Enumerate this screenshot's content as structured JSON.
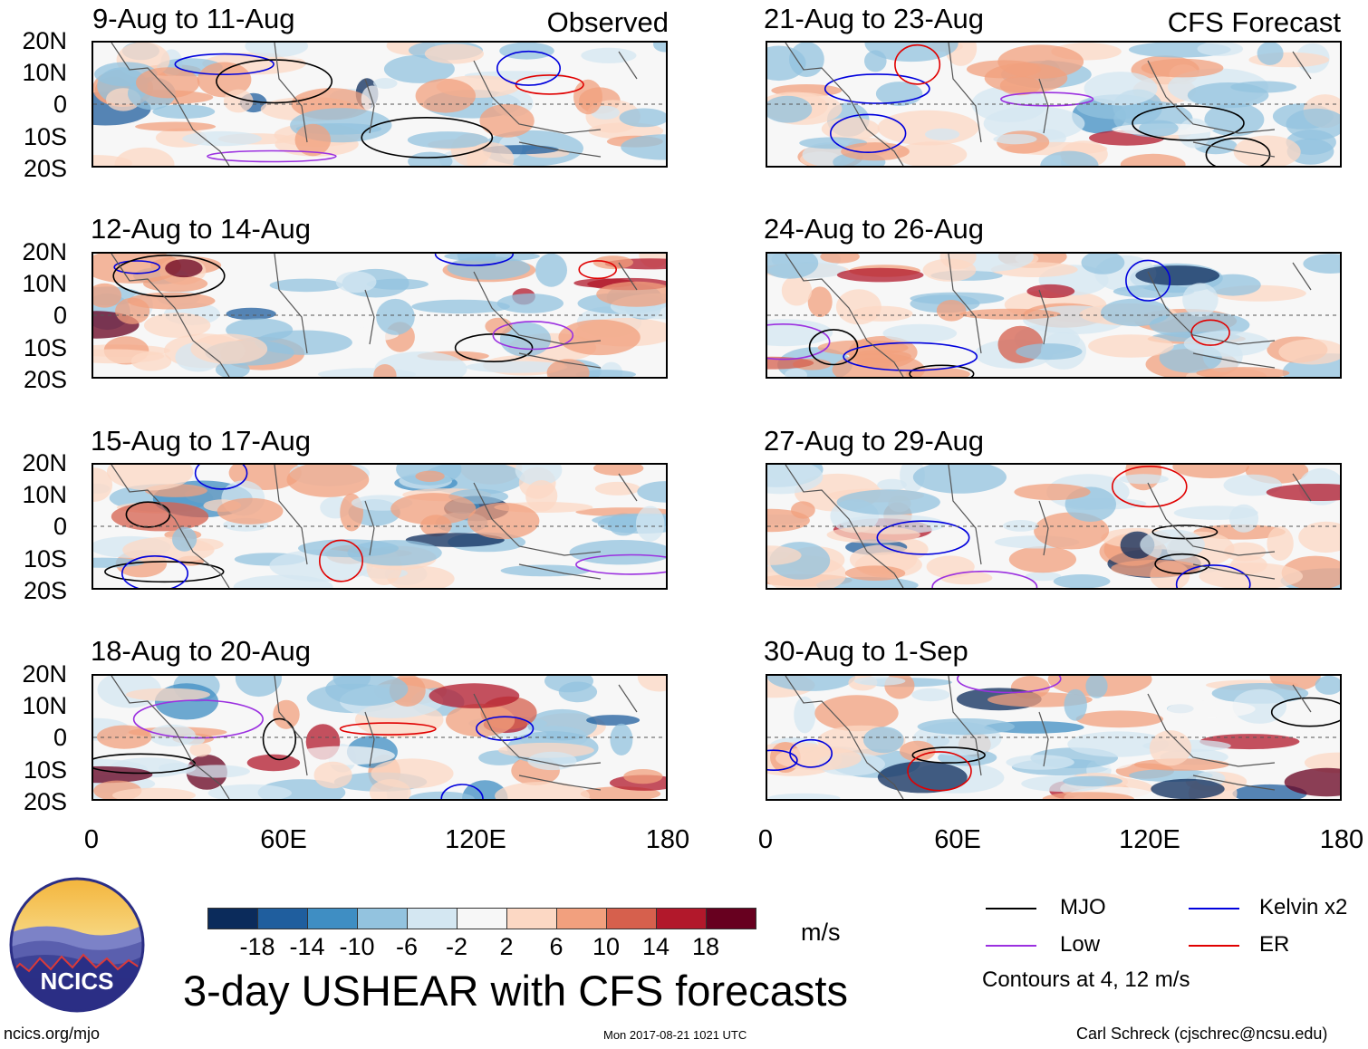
{
  "header": {
    "observed_label": "Observed",
    "forecast_label": "CFS Forecast"
  },
  "panels_left": [
    {
      "title": "9-Aug to 11-Aug"
    },
    {
      "title": "12-Aug to 14-Aug"
    },
    {
      "title": "15-Aug to 17-Aug"
    },
    {
      "title": "18-Aug to 20-Aug"
    }
  ],
  "panels_right": [
    {
      "title": "21-Aug to 23-Aug"
    },
    {
      "title": "24-Aug to 26-Aug"
    },
    {
      "title": "27-Aug to 29-Aug"
    },
    {
      "title": "30-Aug to 1-Sep"
    }
  ],
  "axes": {
    "lat_labels": [
      "20N",
      "10N",
      "0",
      "10S",
      "20S"
    ],
    "lon_labels": [
      "0",
      "60E",
      "120E",
      "180"
    ]
  },
  "colorbar": {
    "labels": [
      "-18",
      "-14",
      "-10",
      "-6",
      "-2",
      "2",
      "6",
      "10",
      "14",
      "18"
    ],
    "unit": "m/s",
    "colors": [
      "#0b2b5b",
      "#1f5e9e",
      "#3f8ec3",
      "#93c3df",
      "#d4e7f2",
      "#f7f7f7",
      "#fcd8c4",
      "#f2a07e",
      "#d6604d",
      "#b2182b",
      "#67001f"
    ]
  },
  "legend": {
    "items": [
      {
        "label": "MJO",
        "color": "#000000"
      },
      {
        "label": "Kelvin x2",
        "color": "#0000dd"
      },
      {
        "label": "Low",
        "color": "#9b30e0"
      },
      {
        "label": "ER",
        "color": "#e00000"
      }
    ],
    "contours_note": "Contours at 4, 12 m/s"
  },
  "footer": {
    "main_title": "3-day USHEAR with CFS forecasts",
    "website": "ncics.org/mjo",
    "timestamp": "Mon 2017-08-21 1021 UTC",
    "author": "Carl Schreck (cjschrec@ncsu.edu)",
    "logo_text": "NCICS"
  }
}
